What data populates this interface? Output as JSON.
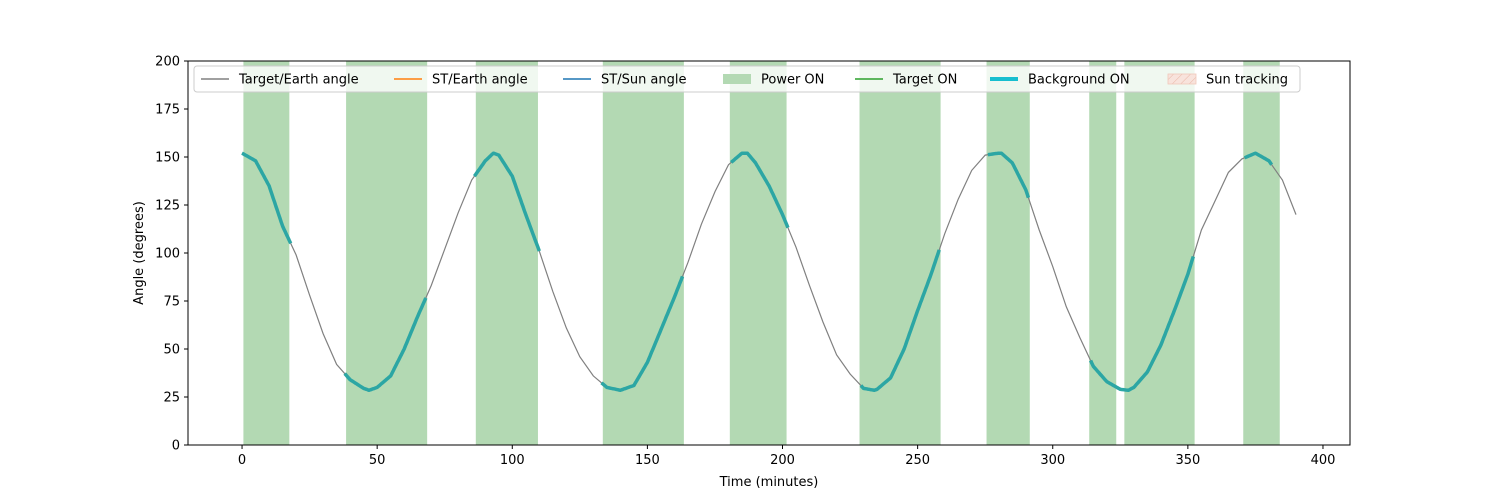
{
  "chart_data": {
    "type": "line",
    "xlabel": "Time (minutes)",
    "ylabel": "Angle (degrees)",
    "xlim": [
      -20,
      410
    ],
    "ylim": [
      0,
      200
    ],
    "xticks": [
      0,
      50,
      100,
      150,
      200,
      250,
      300,
      350,
      400
    ],
    "yticks": [
      0,
      25,
      50,
      75,
      100,
      125,
      150,
      175,
      200
    ],
    "grid": false,
    "legend_position": "top",
    "target_earth_angle": {
      "name": "Target/Earth angle",
      "color": "#808080",
      "x": [
        0,
        5,
        10,
        15,
        20,
        25,
        30,
        35,
        40,
        45,
        47,
        50,
        55,
        60,
        65,
        70,
        75,
        80,
        85,
        90,
        93,
        95,
        100,
        105,
        110,
        115,
        120,
        125,
        130,
        135,
        140,
        145,
        150,
        155,
        160,
        165,
        170,
        175,
        180,
        185,
        187,
        190,
        195,
        200,
        205,
        210,
        215,
        220,
        225,
        230,
        234,
        235,
        240,
        245,
        250,
        255,
        260,
        265,
        270,
        275,
        280,
        281,
        285,
        290,
        295,
        300,
        305,
        310,
        315,
        320,
        325,
        328,
        330,
        335,
        340,
        345,
        350,
        355,
        360,
        365,
        370,
        375,
        380,
        385,
        390
      ],
      "y": [
        152,
        148,
        135,
        114,
        99,
        78,
        58,
        42,
        34,
        29.5,
        28.5,
        30,
        36,
        50,
        67,
        83,
        102,
        121,
        138,
        148,
        152,
        151,
        140,
        120,
        101,
        80,
        61,
        46,
        36,
        30,
        28.5,
        31,
        43,
        60,
        77,
        95,
        115,
        132,
        146,
        152,
        152,
        147,
        135,
        120,
        103,
        83,
        64,
        47,
        37,
        29.5,
        28.5,
        29,
        35,
        50,
        70,
        89,
        110,
        128,
        143,
        151,
        152,
        152,
        147,
        133,
        112,
        93,
        72,
        56,
        41,
        33,
        29,
        28.5,
        30,
        38,
        52,
        70,
        89,
        112,
        127,
        142,
        149,
        152,
        148,
        138,
        120
      ]
    },
    "power_on_intervals": [
      [
        0.5,
        17.5
      ],
      [
        38.5,
        68.5
      ],
      [
        86.5,
        109.5
      ],
      [
        133.5,
        163.5
      ],
      [
        180.5,
        201.5
      ],
      [
        228.5,
        258.5
      ],
      [
        275.5,
        291.5
      ],
      [
        313.5,
        323.5
      ],
      [
        326.5,
        352.5
      ],
      [
        370.5,
        384
      ]
    ],
    "background_on_segments": [
      [
        0,
        18
      ],
      [
        38,
        68
      ],
      [
        86,
        110
      ],
      [
        133,
        163
      ],
      [
        181,
        202
      ],
      [
        229,
        258
      ],
      [
        276,
        291
      ],
      [
        314,
        352
      ],
      [
        371,
        381
      ]
    ],
    "legend": [
      {
        "label": "Target/Earth angle",
        "kind": "line",
        "color": "#808080"
      },
      {
        "label": "ST/Earth angle",
        "kind": "line",
        "color": "#ff7f0e"
      },
      {
        "label": "ST/Sun angle",
        "kind": "line",
        "color": "#1f77b4"
      },
      {
        "label": "Power ON",
        "kind": "patch",
        "color": "#b3d9b3"
      },
      {
        "label": "Target ON",
        "kind": "line",
        "color": "#2ca02c"
      },
      {
        "label": "Background ON",
        "kind": "thickline",
        "color": "#17becf"
      },
      {
        "label": "Sun tracking",
        "kind": "hatch",
        "color": "#f4d3c8"
      }
    ],
    "power_color": "#b3d9b3",
    "background_color": "#2ca6a4"
  }
}
